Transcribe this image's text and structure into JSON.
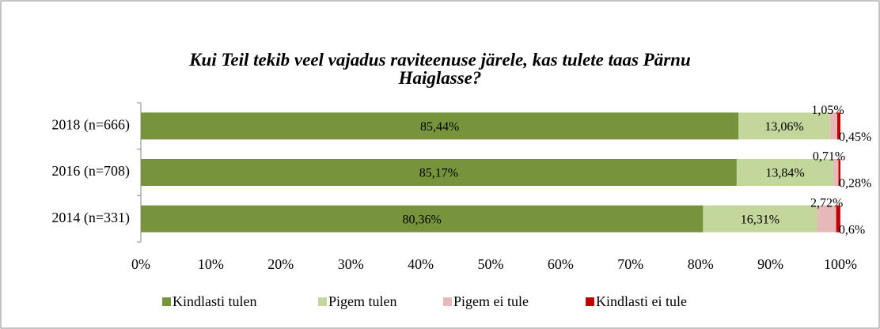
{
  "chart_data": {
    "type": "stacked-bar-horizontal",
    "title": "Kui Teil tekib veel vajadus raviteenuse järele, kas tulete taas Pärnu Haiglasse?",
    "categories": [
      "2018 (n=666)",
      "2016 (n=708)",
      "2014 (n=331)"
    ],
    "series": [
      {
        "name": "Kindlasti tulen",
        "color": "#77933c",
        "values": [
          85.44,
          85.17,
          80.36
        ],
        "value_labels": [
          "85,44%",
          "85,17%",
          "80,36%"
        ]
      },
      {
        "name": "Pigem tulen",
        "color": "#c3d69b",
        "values": [
          13.06,
          13.84,
          16.31
        ],
        "value_labels": [
          "13,06%",
          "13,84%",
          "16,31%"
        ]
      },
      {
        "name": "Pigem ei tule",
        "color": "#e6b9b8",
        "values": [
          1.05,
          0.71,
          2.72
        ],
        "value_labels": [
          "1,05%",
          "0,71%",
          "2,72%"
        ]
      },
      {
        "name": "Kindlasti ei tule",
        "color": "#c00000",
        "values": [
          0.45,
          0.28,
          0.6
        ],
        "value_labels": [
          "0,45%",
          "0,28%",
          "0,6%"
        ]
      }
    ],
    "xlim": [
      0,
      100
    ],
    "xticks": [
      {
        "value": 0,
        "label": "0%"
      },
      {
        "value": 10,
        "label": "10%"
      },
      {
        "value": 20,
        "label": "20%"
      },
      {
        "value": 30,
        "label": "30%"
      },
      {
        "value": 40,
        "label": "40%"
      },
      {
        "value": 50,
        "label": "50%"
      },
      {
        "value": 60,
        "label": "60%"
      },
      {
        "value": 70,
        "label": "70%"
      },
      {
        "value": 80,
        "label": "80%"
      },
      {
        "value": 90,
        "label": "90%"
      },
      {
        "value": 100,
        "label": "100%"
      }
    ],
    "legend": "bottom"
  }
}
